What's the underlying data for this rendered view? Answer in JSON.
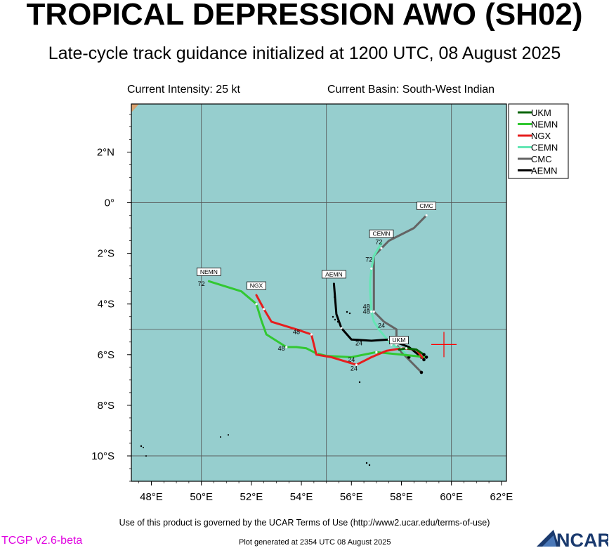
{
  "title": "TROPICAL DEPRESSION AWO (SH02)",
  "subtitle": "Late-cycle track guidance initialized at 1200 UTC, 08 August 2025",
  "current_intensity": "Current Intensity: 25 kt",
  "current_basin": "Current Basin: South-West Indian",
  "footer": {
    "terms": "Use of this product is governed by the UCAR Terms of Use (http://www2.ucar.edu/terms-of-use)",
    "generated": "Plot generated at 2354 UTC   08 August 2025",
    "version": "TCGP v2.6-beta",
    "logo": "NCAR"
  },
  "colors": {
    "ocean": "#96cece",
    "land": "#d9a26f",
    "grid": "#555555",
    "current_position": "#ff0000",
    "UKM": "#006400",
    "NEMN": "#32c832",
    "NGX": "#e61e1e",
    "CEMN": "#64e6b4",
    "CMC": "#646464",
    "AEMN": "#000000"
  },
  "map": {
    "lon_range": [
      47.2,
      62.2
    ],
    "lat_range": [
      -11.0,
      3.9
    ],
    "lon_ticks": [
      "48°E",
      "50°E",
      "52°E",
      "54°E",
      "56°E",
      "58°E",
      "60°E",
      "62°E"
    ],
    "lat_ticks": [
      "2°N",
      "0°",
      "2°S",
      "4°S",
      "6°S",
      "8°S",
      "10°S"
    ],
    "current_position": {
      "lon": 59.7,
      "lat": -5.6
    }
  },
  "legend": [
    "UKM",
    "NEMN",
    "NGX",
    "CEMN",
    "CMC",
    "AEMN"
  ],
  "chart_data": {
    "type": "map",
    "tracks": [
      {
        "name": "UKM",
        "points": [
          [
            58.9,
            -6.0
          ],
          [
            58.6,
            -5.8
          ],
          [
            58.2,
            -5.75
          ],
          [
            57.9,
            -5.8
          ]
        ],
        "end_label": "UKM"
      },
      {
        "name": "NEMN",
        "points": [
          [
            59.0,
            -6.1
          ],
          [
            58.0,
            -6.0
          ],
          [
            57.0,
            -5.9
          ],
          [
            56.0,
            -6.1
          ],
          [
            55.0,
            -6.05
          ],
          [
            54.6,
            -5.95
          ],
          [
            54.2,
            -5.75
          ],
          [
            53.8,
            -5.7
          ],
          [
            53.4,
            -5.7
          ],
          [
            52.6,
            -5.2
          ],
          [
            52.4,
            -4.65
          ],
          [
            52.2,
            -4.0
          ],
          [
            51.6,
            -3.5
          ],
          [
            50.3,
            -3.1
          ]
        ],
        "end_label": "NEMN",
        "tau_labels": [
          {
            "text": "24",
            "lon": 56.0,
            "lat": -6.2
          },
          {
            "text": "48",
            "lon": 53.2,
            "lat": -5.75
          },
          {
            "text": "72",
            "lon": 50.0,
            "lat": -3.2
          }
        ]
      },
      {
        "name": "NGX",
        "points": [
          [
            58.9,
            -6.2
          ],
          [
            58.6,
            -5.8
          ],
          [
            58.0,
            -5.75
          ],
          [
            57.4,
            -5.85
          ],
          [
            56.8,
            -6.1
          ],
          [
            56.2,
            -6.4
          ],
          [
            55.2,
            -6.1
          ],
          [
            54.6,
            -6.0
          ],
          [
            54.4,
            -5.2
          ],
          [
            53.8,
            -5.0
          ],
          [
            52.8,
            -4.7
          ],
          [
            52.5,
            -4.2
          ],
          [
            52.2,
            -3.65
          ]
        ],
        "end_label": "NGX",
        "tau_labels": [
          {
            "text": "24",
            "lon": 56.1,
            "lat": -6.55
          },
          {
            "text": "48",
            "lon": 53.8,
            "lat": -5.1
          }
        ]
      },
      {
        "name": "CEMN",
        "points": [
          [
            58.3,
            -6.1
          ],
          [
            58.0,
            -5.8
          ],
          [
            57.6,
            -5.6
          ],
          [
            57.1,
            -5.0
          ],
          [
            56.9,
            -4.7
          ],
          [
            56.8,
            -4.3
          ],
          [
            56.75,
            -3.5
          ],
          [
            56.75,
            -3.1
          ],
          [
            56.8,
            -2.6
          ],
          [
            56.9,
            -2.1
          ],
          [
            57.2,
            -1.6
          ]
        ],
        "end_label": "CEMN",
        "tau_labels": [
          {
            "text": "24",
            "lon": 57.2,
            "lat": -4.85
          },
          {
            "text": "48",
            "lon": 56.6,
            "lat": -4.1
          },
          {
            "text": "72",
            "lon": 57.1,
            "lat": -1.55
          }
        ]
      },
      {
        "name": "CMC",
        "points": [
          [
            58.8,
            -6.7
          ],
          [
            58.0,
            -5.9
          ],
          [
            57.8,
            -5.6
          ],
          [
            57.8,
            -5.0
          ],
          [
            57.3,
            -4.7
          ],
          [
            56.9,
            -4.3
          ],
          [
            56.9,
            -3.5
          ],
          [
            56.9,
            -2.1
          ],
          [
            57.2,
            -1.8
          ],
          [
            57.5,
            -1.5
          ],
          [
            58.5,
            -1.0
          ],
          [
            59.0,
            -0.5
          ]
        ],
        "end_label": "CMC",
        "tau_labels": [
          {
            "text": "48",
            "lon": 56.6,
            "lat": -4.3
          },
          {
            "text": "72",
            "lon": 56.7,
            "lat": -2.25
          }
        ]
      },
      {
        "name": "AEMN",
        "points": [
          [
            58.8,
            -6.1
          ],
          [
            58.3,
            -5.7
          ],
          [
            57.5,
            -5.4
          ],
          [
            56.8,
            -5.45
          ],
          [
            56.0,
            -5.4
          ],
          [
            55.6,
            -4.95
          ],
          [
            55.4,
            -4.4
          ],
          [
            55.3,
            -3.2
          ]
        ],
        "end_label": "AEMN",
        "tau_labels": [
          {
            "text": "24",
            "lon": 56.3,
            "lat": -5.55
          }
        ]
      }
    ]
  }
}
